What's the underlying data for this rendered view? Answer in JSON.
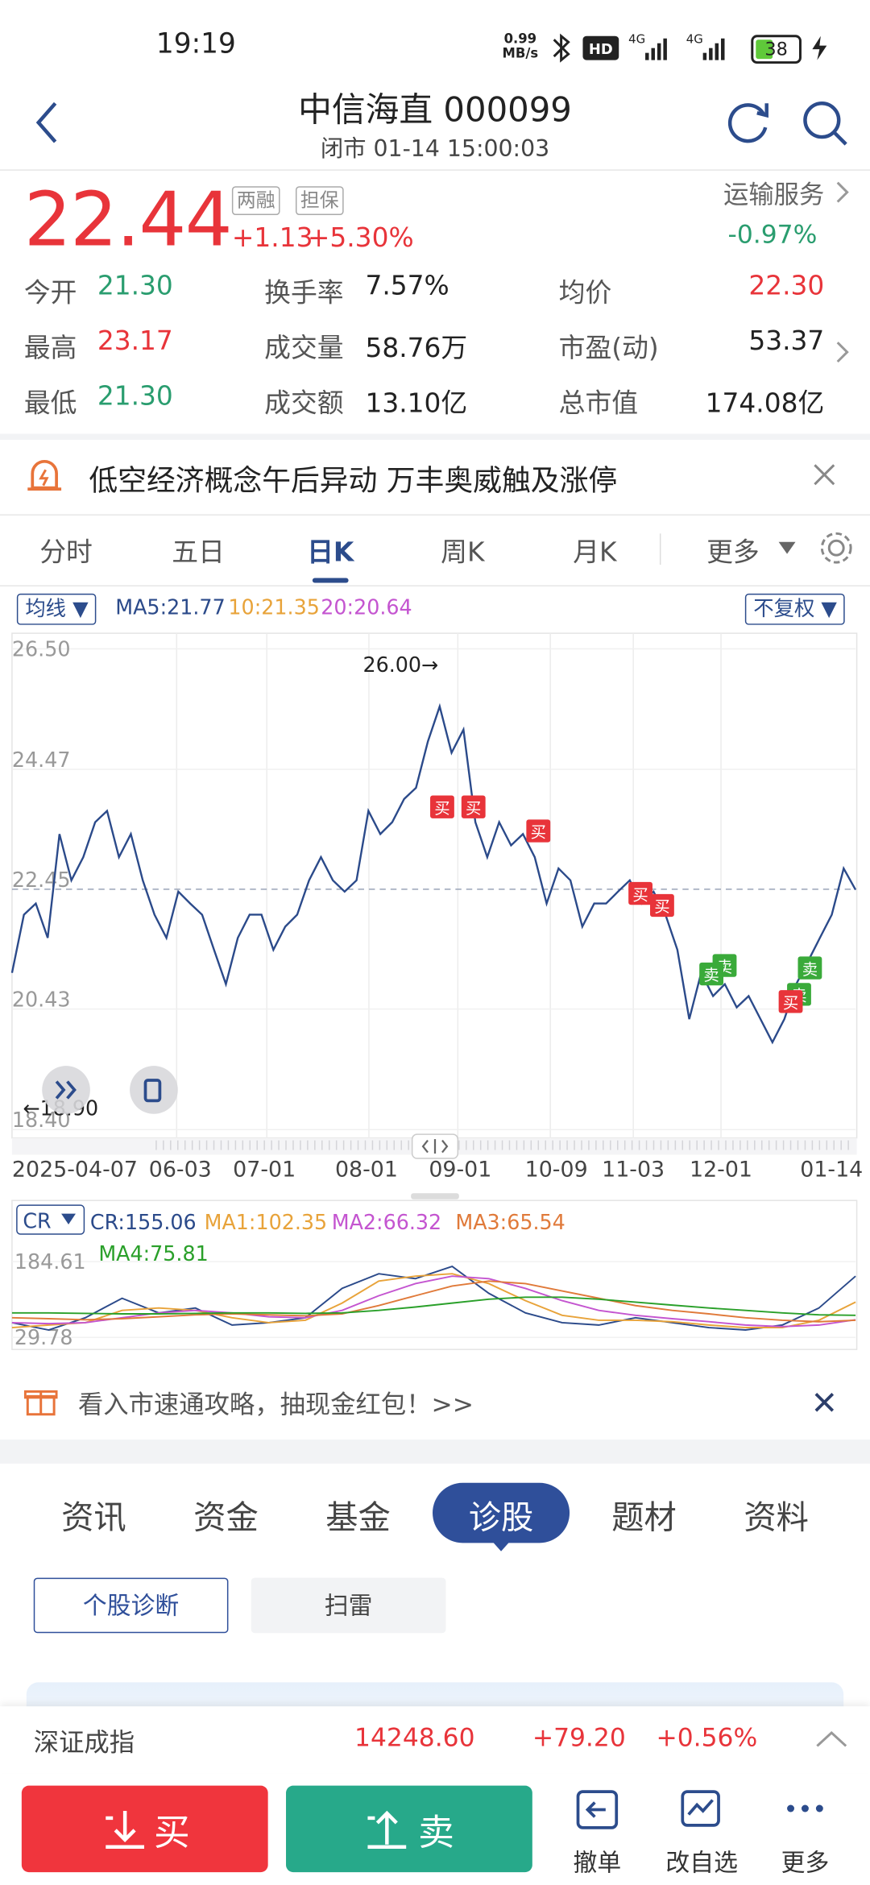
{
  "status": {
    "time": "19:19",
    "net": "0.99",
    "net_unit": "MB/s",
    "battery": "38"
  },
  "header": {
    "title": "中信海直 000099",
    "subtitle": "闭市 01-14 15:00:03"
  },
  "quote": {
    "price": "22.44",
    "tags": [
      "两融",
      "担保"
    ],
    "change": "+1.13",
    "pct": "+5.30%",
    "sector": "运输服务",
    "sector_pct": "-0.97%"
  },
  "stats": {
    "rows": [
      [
        {
          "label": "今开",
          "value": "21.30"
        },
        {
          "label": "换手率",
          "value": "7.57%"
        },
        {
          "label": "均价",
          "value": "22.30"
        }
      ],
      [
        {
          "label": "最高",
          "value": "23.17"
        },
        {
          "label": "成交量",
          "value": "58.76万"
        },
        {
          "label": "市盈(动)",
          "value": "53.37"
        }
      ],
      [
        {
          "label": "最低",
          "value": "21.30"
        },
        {
          "label": "成交额",
          "value": "13.10亿"
        },
        {
          "label": "总市值",
          "value": "174.08亿"
        }
      ]
    ]
  },
  "news": "低空经济概念午后异动 万丰奥威触及涨停",
  "chart_tabs": [
    "分时",
    "五日",
    "日K",
    "周K",
    "月K",
    "更多"
  ],
  "chart_header": {
    "ma_selector": "均线",
    "ma5": "MA5:21.77",
    "ma10": "10:21.35",
    "ma20": "20:20.64",
    "adjust": "不复权"
  },
  "signals": [
    "买",
    "买",
    "买",
    "买",
    "买",
    "卖",
    "卖",
    "卖",
    "卖",
    "买"
  ],
  "chart_data": [
    {
      "type": "line",
      "ylim": [
        18.4,
        26.5
      ],
      "yticks": [
        {
          "value": 26.5,
          "label": "26.50"
        },
        24.47,
        22.45,
        20.43,
        {
          "value": 18.4,
          "label": "18.40"
        }
      ],
      "x_labels": [
        "2025-04-07",
        "06-03",
        "07-01",
        "08-01",
        "09-01",
        "10-09",
        "11-03",
        "12-01",
        "01-14"
      ],
      "annotations": {
        "high": "26.00→",
        "low": "←18.90"
      },
      "series": [
        {
          "color": "#2b4a8a",
          "values": [
            21.04,
            22.02,
            22.21,
            21.63,
            23.38,
            22.6,
            22.99,
            23.58,
            23.77,
            22.99,
            23.38,
            22.6,
            22.02,
            21.63,
            22.41,
            22.21,
            22.02,
            21.43,
            20.85,
            21.63,
            22.02,
            22.02,
            21.43,
            21.82,
            22.02,
            22.6,
            22.99,
            22.6,
            22.41,
            22.6,
            23.77,
            23.38,
            23.58,
            23.97,
            24.16,
            24.94,
            25.53,
            24.75,
            25.14,
            23.58,
            22.99,
            23.58,
            23.19,
            23.38,
            22.99,
            22.21,
            22.8,
            22.6,
            21.82,
            22.21,
            22.21,
            22.41,
            22.6,
            22.21,
            22.41,
            22.02,
            21.43,
            20.26,
            21.04,
            20.65,
            20.85,
            20.46,
            20.65,
            20.26,
            19.87,
            20.26,
            20.85,
            21.24,
            21.63,
            22.02,
            22.8,
            22.44
          ]
        }
      ]
    },
    {
      "type": "line",
      "title": "CR",
      "ylim": [
        29.78,
        184.61
      ],
      "yticks": [
        184.61,
        29.78
      ],
      "series": [
        {
          "name": "CR:155.06",
          "color": "#2b4a8a",
          "values": [
            60,
            45,
            70,
            110,
            80,
            90,
            55,
            60,
            70,
            130,
            160,
            150,
            175,
            120,
            80,
            60,
            55,
            70,
            60,
            50,
            45,
            55,
            90,
            155
          ]
        },
        {
          "name": "MA1:102.35",
          "color": "#e8a33a",
          "values": [
            50,
            55,
            60,
            85,
            90,
            85,
            70,
            60,
            65,
            100,
            145,
            155,
            160,
            140,
            105,
            75,
            65,
            65,
            62,
            55,
            50,
            50,
            65,
            102
          ]
        },
        {
          "name": "MA2:66.32",
          "color": "#c455d0",
          "values": [
            60,
            58,
            60,
            70,
            80,
            85,
            80,
            72,
            70,
            85,
            115,
            140,
            155,
            150,
            130,
            105,
            85,
            75,
            68,
            62,
            55,
            52,
            55,
            66
          ]
        },
        {
          "name": "MA3:65.54",
          "color": "#e07a3a",
          "values": [
            70,
            68,
            66,
            68,
            72,
            76,
            78,
            76,
            74,
            78,
            95,
            115,
            135,
            145,
            140,
            125,
            110,
            95,
            85,
            78,
            70,
            65,
            62,
            65
          ]
        },
        {
          "name": "MA4:75.81",
          "color": "#2aa02a",
          "values": [
            80,
            80,
            79,
            78,
            78,
            79,
            80,
            80,
            79,
            80,
            85,
            92,
            100,
            108,
            112,
            112,
            108,
            102,
            96,
            90,
            85,
            80,
            76,
            75
          ]
        }
      ]
    }
  ],
  "promo": "看入市速通攻略，抽现金红包！>>",
  "info_tabs": [
    "资讯",
    "资金",
    "基金",
    "诊股",
    "题材",
    "资料"
  ],
  "diag_buttons": [
    "个股诊断",
    "扫雷"
  ],
  "index_bar": {
    "name": "深证成指",
    "value": "14248.60",
    "change": "+79.20",
    "pct": "+0.56%"
  },
  "bottom_bar": {
    "buy": "买",
    "sell": "卖",
    "actions": [
      "撤单",
      "改自选",
      "更多"
    ]
  }
}
